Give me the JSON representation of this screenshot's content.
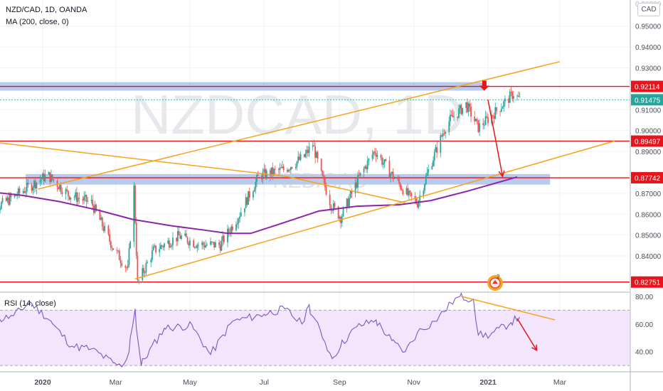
{
  "header": {
    "symbol": "NZD/CAD, 1D, OANDA",
    "ma_label": "MA (200, close, 0)",
    "rsi_label": "RSI (14, close)",
    "currency_button": "CAD"
  },
  "watermark": {
    "symbol": "NZDCAD, 1D",
    "sub": "NZD/CAD"
  },
  "colors": {
    "bull": "#26a69a",
    "bear": "#ef5350",
    "ma": "#8e24aa",
    "trend": "#f7a21b",
    "level": "#e8141c",
    "zone": "#9db9e8",
    "rsi": "#7e57c2",
    "rsi_band": "#f3e5fb"
  },
  "chart_data": [
    {
      "type": "candlestick",
      "title": "NZD/CAD, 1D, OANDA",
      "x_ticks": [
        "2020",
        "Mar",
        "May",
        "Jul",
        "Sep",
        "Nov",
        "2021",
        "Mar"
      ],
      "y_ticks": [
        "0.95000",
        "0.94000",
        "0.93000",
        "0.91000",
        "0.90000",
        "0.89000",
        "0.87000",
        "0.86000",
        "0.85000",
        "0.84000"
      ],
      "ylim": [
        0.823,
        0.9625
      ],
      "grid": true,
      "ohlc_path": [
        [
          0.8595,
          "2019-11-14"
        ],
        [
          0.8735,
          "2019-12-22"
        ],
        [
          0.8788,
          "2020-01-05"
        ],
        [
          0.8695,
          "2020-01-22"
        ],
        [
          0.8655,
          "2020-02-10"
        ],
        [
          0.8438,
          "2020-02-28"
        ],
        [
          0.8335,
          "2020-03-11"
        ],
        [
          0.8725,
          "2020-03-16"
        ],
        [
          0.8268,
          "2020-03-19"
        ],
        [
          0.8425,
          "2020-04-01"
        ],
        [
          0.8495,
          "2020-04-22"
        ],
        [
          0.8455,
          "2020-05-08"
        ],
        [
          0.8452,
          "2020-05-26"
        ],
        [
          0.8592,
          "2020-06-10"
        ],
        [
          0.8785,
          "2020-06-27"
        ],
        [
          0.8815,
          "2020-07-18"
        ],
        [
          0.8875,
          "2020-08-03"
        ],
        [
          0.8935,
          "2020-08-10"
        ],
        [
          0.8785,
          "2020-08-17"
        ],
        [
          0.8645,
          "2020-08-25"
        ],
        [
          0.8585,
          "2020-09-02"
        ],
        [
          0.8775,
          "2020-09-17"
        ],
        [
          0.8905,
          "2020-09-30"
        ],
        [
          0.8788,
          "2020-10-14"
        ],
        [
          0.8685,
          "2020-10-28"
        ],
        [
          0.8655,
          "2020-11-04"
        ],
        [
          0.8825,
          "2020-11-14"
        ],
        [
          0.9035,
          "2020-11-28"
        ],
        [
          0.9125,
          "2020-12-14"
        ],
        [
          0.9015,
          "2020-12-24"
        ],
        [
          0.9065,
          "2021-01-03"
        ],
        [
          0.9178,
          "2021-01-22"
        ],
        [
          0.9148,
          "2021-01-27"
        ]
      ],
      "series": [
        {
          "name": "MA (200, close, 0)",
          "x": [
            "2019-11-14",
            "2019-12-15",
            "2020-01-15",
            "2020-02-15",
            "2020-03-15",
            "2020-04-15",
            "2020-05-15",
            "2020-06-01",
            "2020-06-20",
            "2020-07-15",
            "2020-08-15",
            "2020-09-15",
            "2020-10-20",
            "2020-11-15",
            "2020-12-15",
            "2021-01-25"
          ],
          "y": [
            0.871,
            0.869,
            0.866,
            0.862,
            0.8575,
            0.8545,
            0.8522,
            0.8508,
            0.8508,
            0.8555,
            0.8615,
            0.8638,
            0.8645,
            0.8665,
            0.871,
            0.8778
          ]
        }
      ],
      "horizontal_levels": [
        {
          "label": "0.92114",
          "value": 0.92114
        },
        {
          "label": "0.89497",
          "value": 0.89497
        },
        {
          "label": "0.87742",
          "value": 0.87742
        },
        {
          "label": "0.82751",
          "value": 0.82751
        }
      ],
      "last_price": {
        "label": "0.91475",
        "value": 0.91475
      },
      "zones": [
        {
          "from": 0.9205,
          "to": 0.9225
        },
        {
          "from": 0.8755,
          "to": 0.8785
        }
      ],
      "trendlines": [
        {
          "x": [
            "2019-11-14",
            "2020-07-20"
          ],
          "y": [
            0.895,
            0.878
          ]
        },
        {
          "x": [
            "2020-07-20",
            "2020-10-25"
          ],
          "y": [
            0.878,
            0.8655
          ]
        },
        {
          "x": [
            "2019-12-28",
            "2021-03-01"
          ],
          "y": [
            0.872,
            0.933
          ]
        },
        {
          "x": [
            "2020-03-17",
            "2021-04-15"
          ],
          "y": [
            0.829,
            0.895
          ]
        }
      ],
      "projection_arrows": [
        {
          "x": [
            "2021-01-01",
            "2021-01-13"
          ],
          "y": [
            0.9148,
            0.878
          ]
        }
      ],
      "event_marker": "2"
    },
    {
      "type": "line",
      "title": "RSI (14, close)",
      "y_ticks": [
        "80.00",
        "60.00",
        "40.00"
      ],
      "ylim": [
        26,
        83
      ],
      "band": [
        30,
        70
      ],
      "series": [
        {
          "name": "RSI (14, close)",
          "x": [
            "2019-11-14",
            "2019-12-08",
            "2019-12-22",
            "2020-01-08",
            "2020-01-25",
            "2020-02-10",
            "2020-02-28",
            "2020-03-06",
            "2020-03-12",
            "2020-03-17",
            "2020-03-22",
            "2020-04-10",
            "2020-05-03",
            "2020-05-18",
            "2020-06-05",
            "2020-07-01",
            "2020-07-18",
            "2020-08-01",
            "2020-08-07",
            "2020-08-20",
            "2020-08-26",
            "2020-09-02",
            "2020-09-15",
            "2020-10-01",
            "2020-10-14",
            "2020-10-25",
            "2020-11-04",
            "2020-11-18",
            "2020-12-02",
            "2020-12-09",
            "2020-12-20",
            "2020-12-24",
            "2021-01-03",
            "2021-01-20",
            "2021-01-27"
          ],
          "y": [
            60,
            66,
            76,
            62,
            44,
            42,
            32,
            29,
            40,
            71,
            30,
            57,
            59,
            38,
            62,
            67,
            71,
            60,
            74,
            47,
            35,
            44,
            58,
            63,
            48,
            40,
            54,
            62,
            75,
            80,
            78,
            52,
            52,
            61,
            65
          ]
        }
      ],
      "trendlines": [
        {
          "x": [
            "2020-12-10",
            "2021-02-25"
          ],
          "y": [
            80,
            63
          ]
        }
      ],
      "projection_arrows": [
        {
          "x": [
            "2021-01-25",
            "2021-02-10"
          ],
          "y": [
            64,
            41
          ]
        }
      ]
    }
  ]
}
